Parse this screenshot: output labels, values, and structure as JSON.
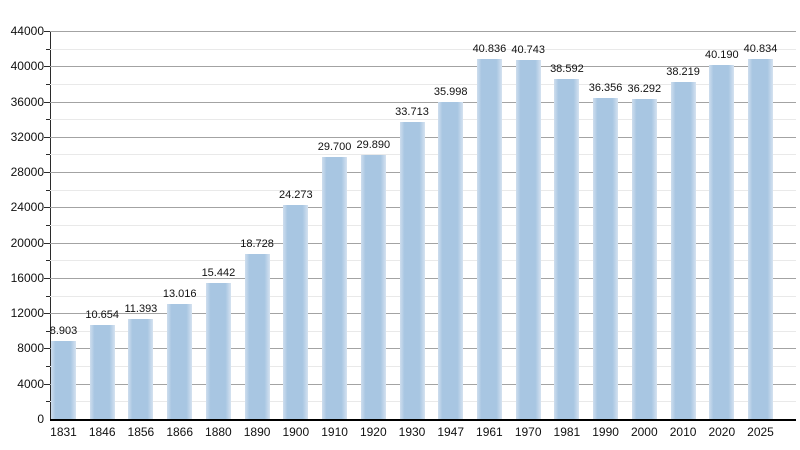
{
  "chart_data": {
    "type": "bar",
    "title": "",
    "xlabel": "",
    "ylabel": "",
    "categories": [
      "1831",
      "1846",
      "1856",
      "1866",
      "1880",
      "1890",
      "1900",
      "1910",
      "1920",
      "1930",
      "1947",
      "1961",
      "1970",
      "1981",
      "1990",
      "2000",
      "2010",
      "2020",
      "2025"
    ],
    "values": [
      8903,
      10654,
      11393,
      13016,
      15442,
      18728,
      24273,
      29700,
      29890,
      33713,
      35998,
      40836,
      40743,
      38592,
      36356,
      36292,
      38219,
      40190,
      40834
    ],
    "value_labels": [
      "8.903",
      "10.654",
      "11.393",
      "13.016",
      "15.442",
      "18.728",
      "24.273",
      "29.700",
      "29.890",
      "33.713",
      "35.998",
      "40.836",
      "40.743",
      "38.592",
      "36.356",
      "36.292",
      "38.219",
      "40.190",
      "40.834"
    ],
    "ylim": [
      0,
      44000
    ],
    "y_major_ticks": [
      0,
      4000,
      8000,
      12000,
      16000,
      20000,
      24000,
      28000,
      32000,
      36000,
      40000,
      44000
    ],
    "y_minor_step": 2000,
    "grid": "on",
    "legend": "none"
  },
  "style": {
    "background": "#ffffff",
    "bar_color": "#a8c6e2",
    "bar_edge_light": "#d5e2f0",
    "bar_edge_light_left": "#cfdeee",
    "major_grid_color": "#a3a3a3",
    "minor_grid_color": "#e9e9e9",
    "axis_color": "#2b2b2b",
    "baseline_color": "#000000",
    "text_color": "#111111"
  }
}
